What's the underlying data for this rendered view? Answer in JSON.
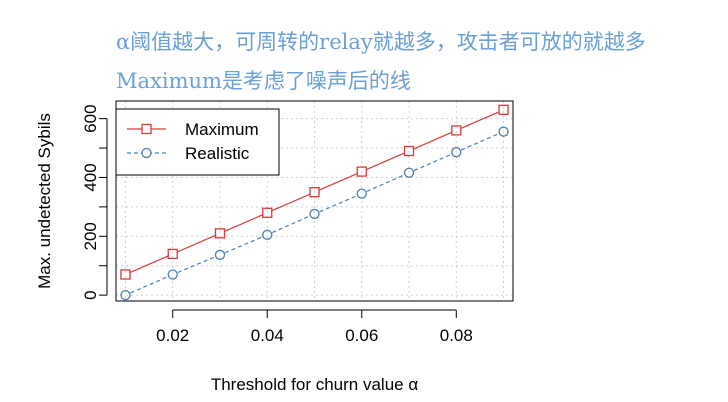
{
  "annotations": [
    "α阈值越大，可周转的relay就越多，攻击者可放的就越多",
    "Maximum是考虑了噪声后的线"
  ],
  "colors": {
    "annotation": "#6a9fd8",
    "maximum": "#d93a3a",
    "realistic": "#4a7fb0",
    "grid": "#cfcfcf"
  },
  "chart_data": {
    "type": "line",
    "title": "",
    "xlabel": "Threshold for churn value α",
    "ylabel": "Max. undetected Sybils",
    "x": [
      0.01,
      0.02,
      0.03,
      0.04,
      0.05,
      0.06,
      0.07,
      0.08,
      0.09
    ],
    "xticks": [
      "0.02",
      "0.04",
      "0.06",
      "0.08"
    ],
    "yticks": [
      "0",
      "200",
      "400",
      "600"
    ],
    "xlim": [
      0.008,
      0.092
    ],
    "ylim": [
      -20,
      660
    ],
    "grid": true,
    "legend_position": "top-left",
    "series": [
      {
        "name": "Maximum",
        "marker": "square",
        "line": "solid",
        "values": [
          70,
          140,
          210,
          280,
          350,
          420,
          490,
          560,
          630
        ]
      },
      {
        "name": "Realistic",
        "marker": "circle",
        "line": "dashed",
        "values": [
          0,
          70,
          137,
          205,
          276,
          345,
          416,
          486,
          556
        ]
      }
    ]
  }
}
